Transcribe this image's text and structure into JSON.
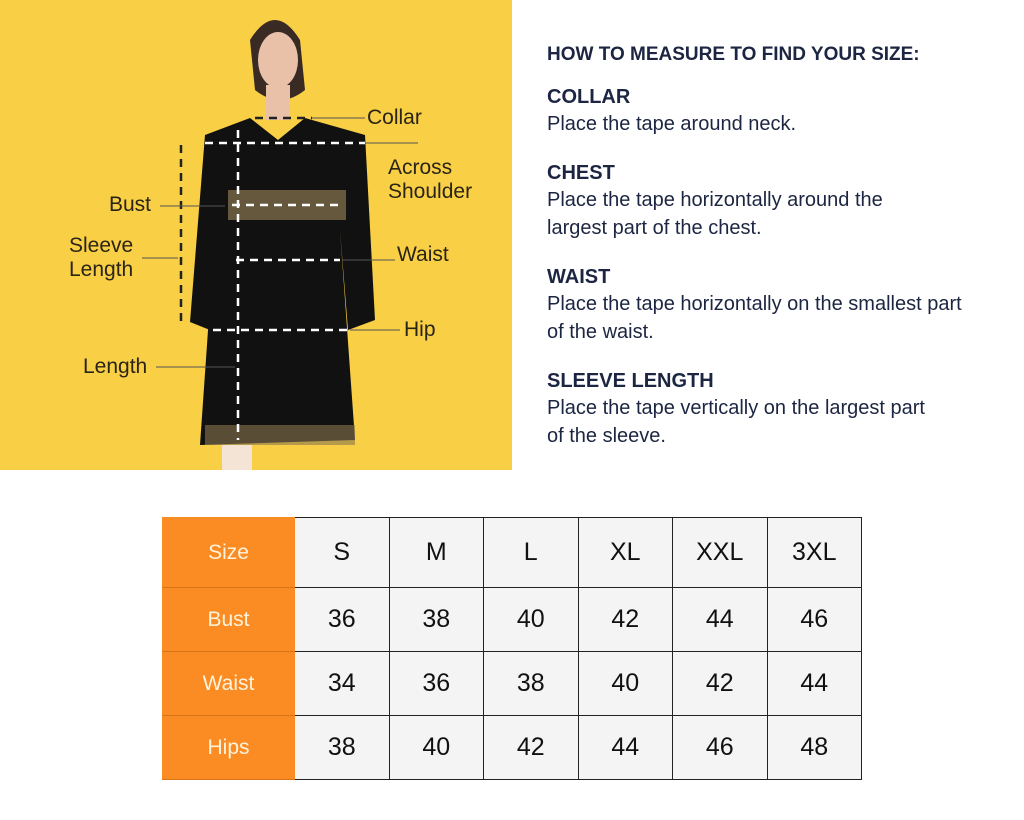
{
  "image_labels": [
    "Collar",
    "Across Shoulder",
    "Bust",
    "Sleeve Length",
    "Waist",
    "Hip",
    "Length"
  ],
  "guide": {
    "title": "HOW TO MEASURE TO FIND YOUR SIZE:",
    "sections": [
      {
        "title": "COLLAR",
        "text": "Place the tape around neck."
      },
      {
        "title": "CHEST",
        "text": "Place the tape horizontally around the largest part of the chest."
      },
      {
        "title": "WAIST",
        "text": "Place the tape horizontally on the smallest part of the waist."
      },
      {
        "title": "SLEEVE LENGTH",
        "text": "Place the tape vertically on the largest part of the sleeve."
      }
    ]
  },
  "colors": {
    "background": "#f8cf45",
    "header_cell": "#fb8c23",
    "text": "#1c2541"
  },
  "table": {
    "header": "Size",
    "sizes": [
      "S",
      "M",
      "L",
      "XL",
      "XXL",
      "3XL"
    ],
    "rows": [
      {
        "label": "Bust",
        "values": [
          "36",
          "38",
          "40",
          "42",
          "44",
          "46"
        ]
      },
      {
        "label": "Waist",
        "values": [
          "34",
          "36",
          "38",
          "40",
          "42",
          "44"
        ]
      },
      {
        "label": "Hips",
        "values": [
          "38",
          "40",
          "42",
          "44",
          "46",
          "48"
        ]
      }
    ]
  }
}
